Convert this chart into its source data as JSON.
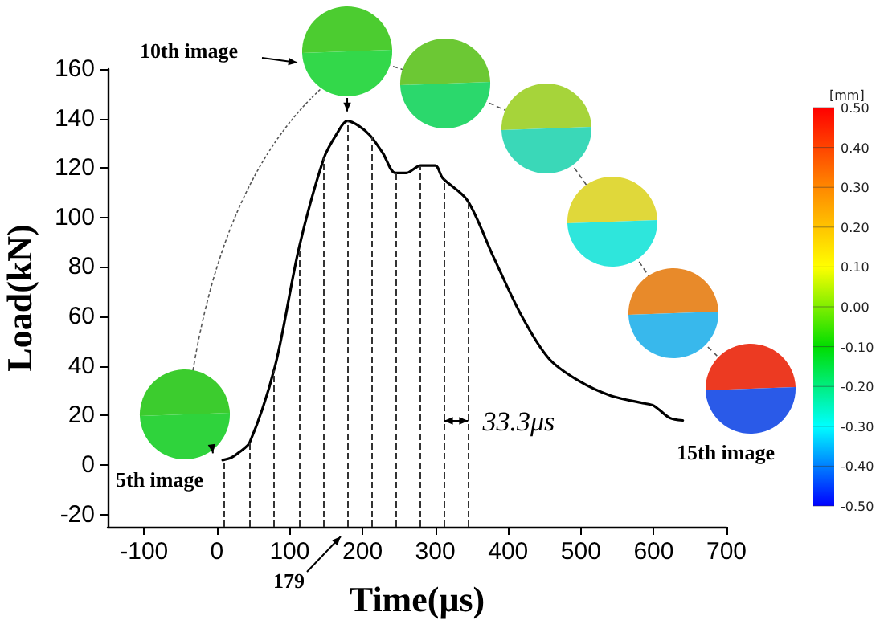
{
  "chart_data": {
    "type": "line",
    "xlabel": "Time(μs)",
    "ylabel": "Load(kN)",
    "xlim": [
      -150,
      700
    ],
    "xticks": [
      -100,
      0,
      100,
      200,
      300,
      400,
      500,
      600,
      700
    ],
    "ylim": [
      -25,
      160
    ],
    "yticks": [
      -20,
      0,
      20,
      40,
      60,
      80,
      100,
      120,
      140,
      160
    ],
    "grid": false,
    "marker": "none",
    "line_style": "solid",
    "series": [
      {
        "color": "#000000",
        "x": [
          8,
          20,
          30,
          45,
          80,
          113,
          147,
          165,
          179,
          195,
          211,
          228,
          245,
          260,
          280,
          300,
          310,
          344,
          380,
          419,
          456,
          497,
          541,
          585,
          600,
          622,
          640
        ],
        "values": [
          2,
          3,
          5,
          9,
          40,
          88,
          124,
          134,
          139,
          137,
          133,
          126,
          118,
          118,
          121,
          121,
          116,
          107,
          84,
          60,
          43,
          34,
          28,
          25,
          24,
          19,
          18
        ]
      }
    ],
    "ref_lines": [
      {
        "axis": "x",
        "value": 10,
        "line_style": "dashed",
        "color": "#333333"
      },
      {
        "axis": "x",
        "value": 45,
        "line_style": "dashed",
        "color": "#333333"
      },
      {
        "axis": "x",
        "value": 78,
        "line_style": "dashed",
        "color": "#333333"
      },
      {
        "axis": "x",
        "value": 113,
        "line_style": "dashed",
        "color": "#333333"
      },
      {
        "axis": "x",
        "value": 147,
        "line_style": "dashed",
        "color": "#333333"
      },
      {
        "axis": "x",
        "value": 179,
        "line_style": "dashed",
        "color": "#333333"
      },
      {
        "axis": "x",
        "value": 212,
        "line_style": "dashed",
        "color": "#333333"
      },
      {
        "axis": "x",
        "value": 245,
        "line_style": "dashed",
        "color": "#333333"
      },
      {
        "axis": "x",
        "value": 278,
        "line_style": "dashed",
        "color": "#333333"
      },
      {
        "axis": "x",
        "value": 312,
        "line_style": "dashed",
        "color": "#333333"
      },
      {
        "axis": "x",
        "value": 345,
        "line_style": "dashed",
        "color": "#333333"
      }
    ],
    "annotations": [
      "10th image",
      "5th image",
      "15th image",
      "179",
      "33.3μs"
    ],
    "clabel": "[mm]",
    "clim": [
      -0.5,
      0.5
    ],
    "cticks": [
      {
        "value": 0.5,
        "label": "0.50"
      },
      {
        "value": 0.4,
        "label": "0.40"
      },
      {
        "value": 0.3,
        "label": "0.30"
      },
      {
        "value": 0.2,
        "label": "0.20"
      },
      {
        "value": 0.1,
        "label": "0.10"
      },
      {
        "value": 0,
        "label": "0.00"
      },
      {
        "value": -0.1,
        "label": "-0.10"
      },
      {
        "value": -0.2,
        "label": "-0.20"
      },
      {
        "value": -0.3,
        "label": "-0.30"
      },
      {
        "value": -0.4,
        "label": "-0.40"
      },
      {
        "value": -0.5,
        "label": "-0.50"
      }
    ]
  }
}
